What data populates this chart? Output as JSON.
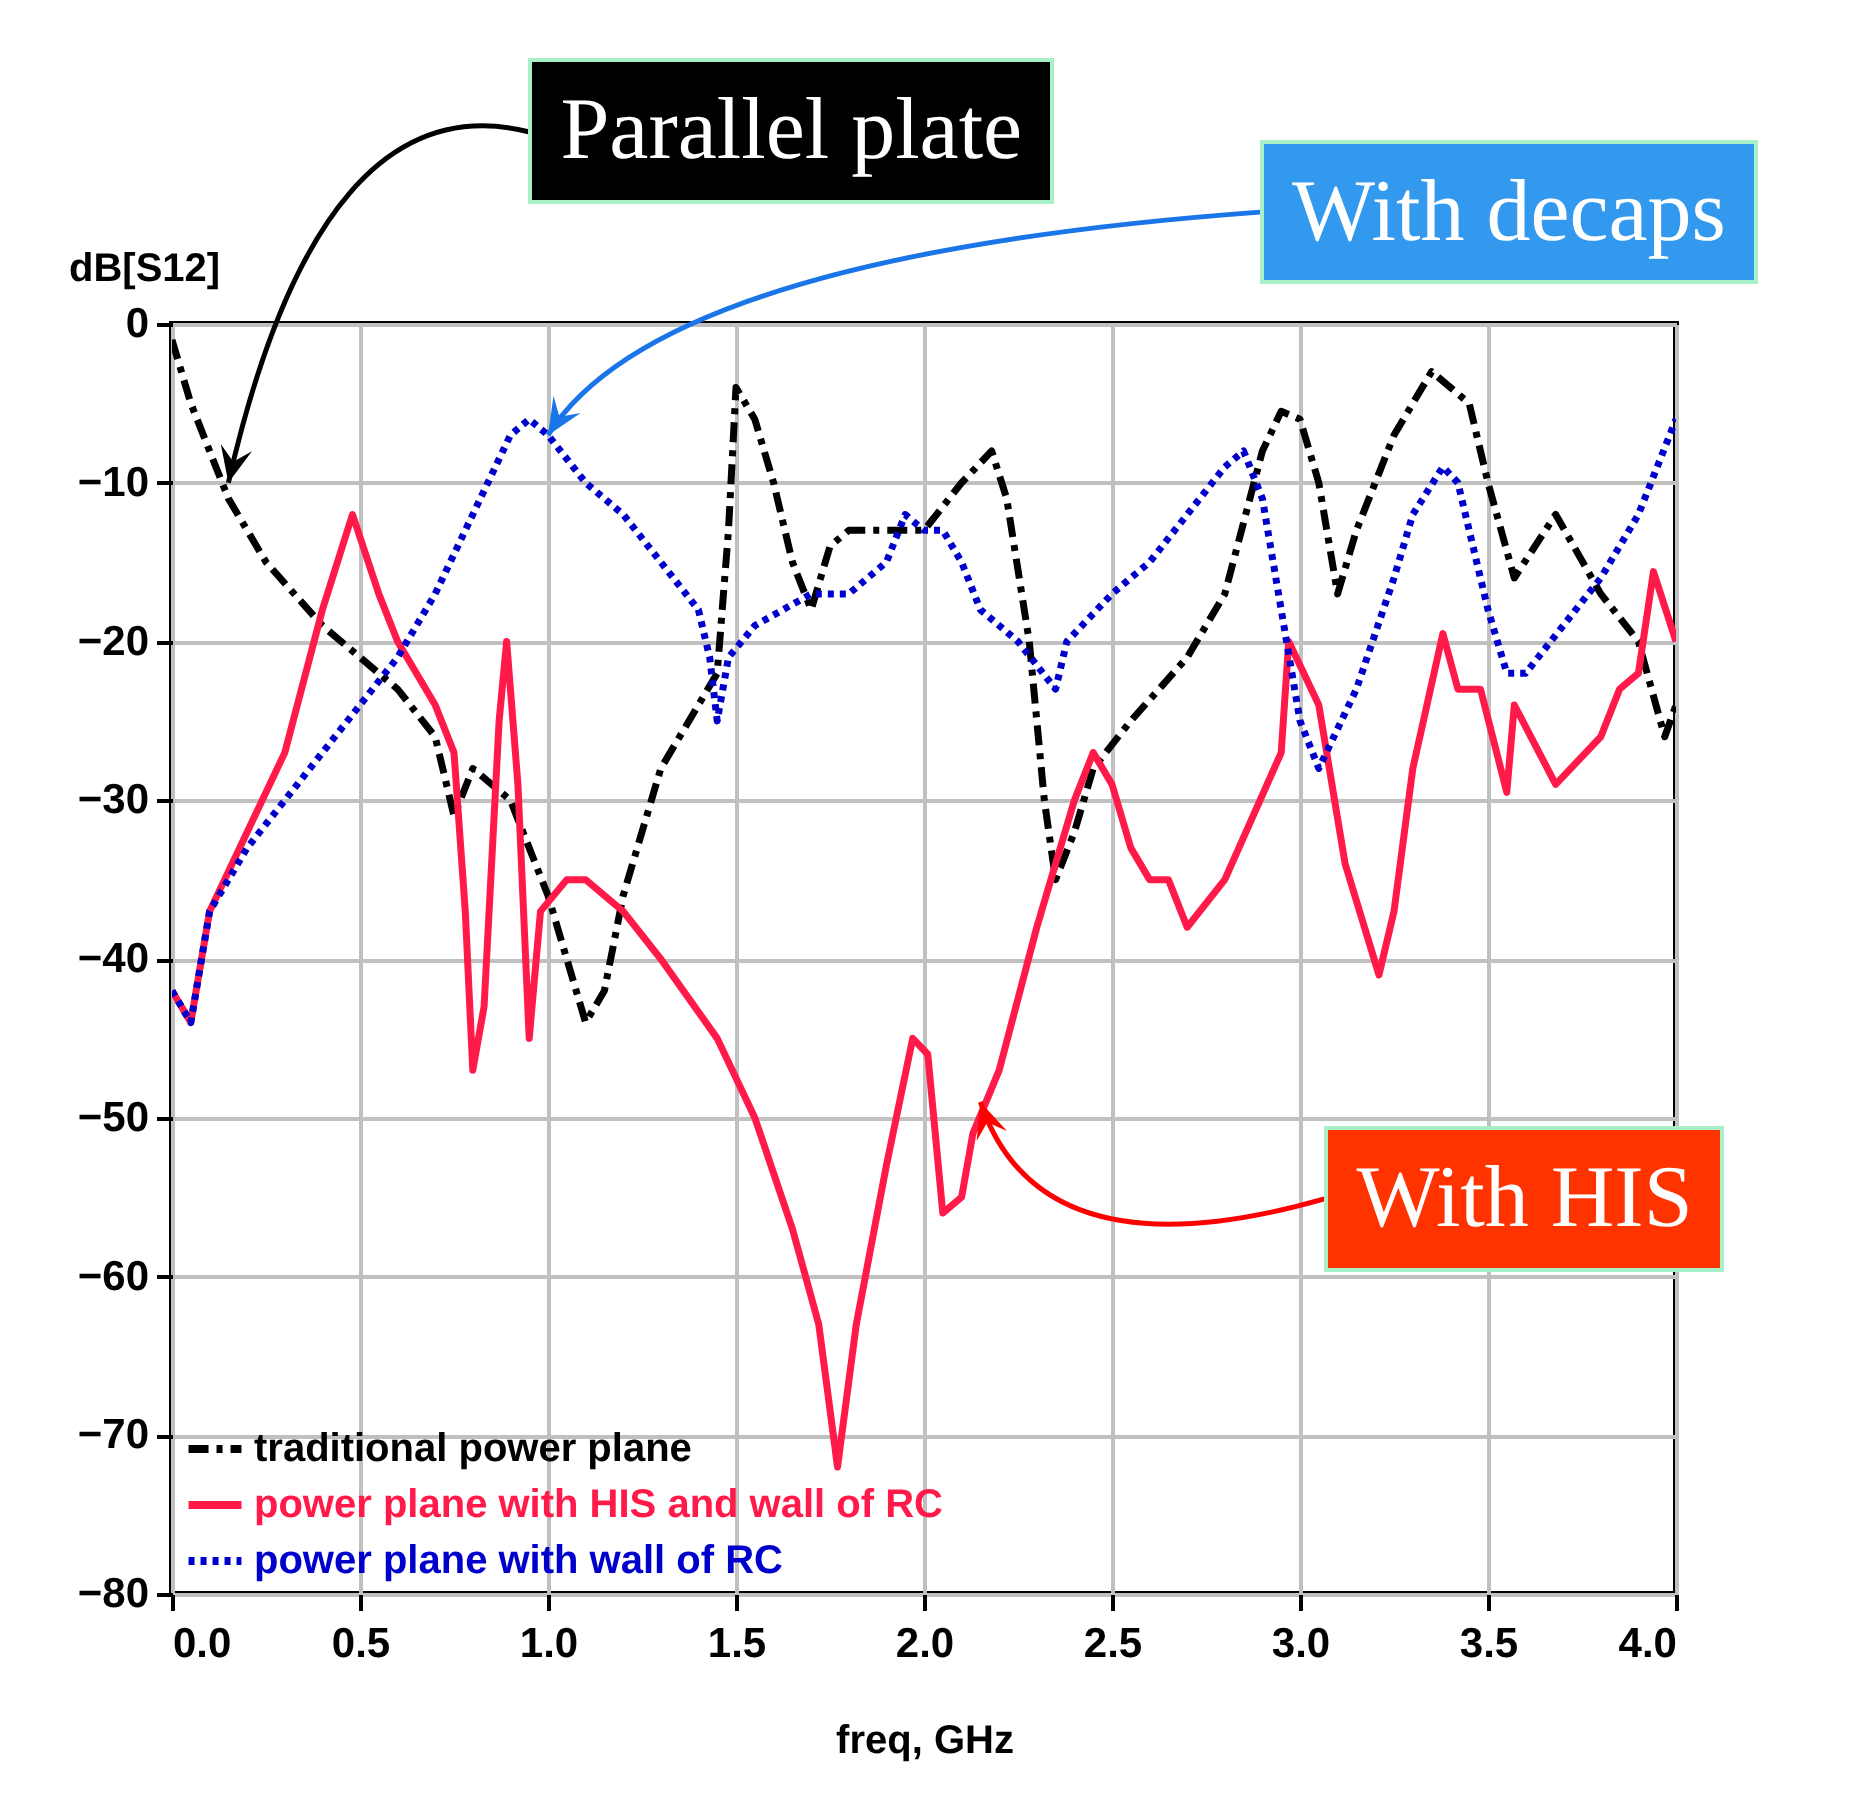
{
  "chart_data": {
    "type": "line",
    "xlabel": "freq, GHz",
    "ylabel": "dB[S12]",
    "xlim": [
      0,
      4
    ],
    "xticks": [
      {
        "value": 0,
        "label": "0.0"
      },
      {
        "value": 0.5,
        "label": "0.5"
      },
      {
        "value": 1,
        "label": "1.0"
      },
      {
        "value": 1.5,
        "label": "1.5"
      },
      {
        "value": 2,
        "label": "2.0"
      },
      {
        "value": 2.5,
        "label": "2.5"
      },
      {
        "value": 3,
        "label": "3.0"
      },
      {
        "value": 3.5,
        "label": "3.5"
      },
      {
        "value": 4,
        "label": "4.0"
      }
    ],
    "ylim": [
      -80,
      0
    ],
    "yticks": [
      -80,
      -70,
      -60,
      -50,
      -40,
      -30,
      -20,
      -10,
      0
    ],
    "grid": true,
    "legend": "bottom left",
    "annotations": [
      {
        "text": "Parallel plate",
        "x": 0.15,
        "y": -10
      },
      {
        "text": "With decaps",
        "x": 1.0,
        "y": -7
      },
      {
        "text": "With HIS",
        "x": 2.15,
        "y": -49
      }
    ],
    "series": [
      {
        "name": "traditional power plane",
        "color": "#000000",
        "line_style": "dashed",
        "x": [
          0,
          0.05,
          0.1,
          0.15,
          0.25,
          0.4,
          0.5,
          0.6,
          0.7,
          0.75,
          0.8,
          0.9,
          1.0,
          1.05,
          1.1,
          1.15,
          1.2,
          1.3,
          1.4,
          1.45,
          1.48,
          1.5,
          1.55,
          1.6,
          1.65,
          1.7,
          1.75,
          1.8,
          1.9,
          2.0,
          2.1,
          2.18,
          2.22,
          2.28,
          2.32,
          2.35,
          2.4,
          2.45,
          2.55,
          2.7,
          2.8,
          2.9,
          2.95,
          3.0,
          3.05,
          3.1,
          3.15,
          3.25,
          3.35,
          3.4,
          3.45,
          3.5,
          3.57,
          3.68,
          3.8,
          3.9,
          3.97,
          4.0
        ],
        "values": [
          -1,
          -5,
          -8,
          -11,
          -15,
          -19,
          -21,
          -23,
          -26,
          -31,
          -28,
          -30,
          -36,
          -40,
          -44,
          -42,
          -36,
          -28,
          -24,
          -22,
          -13,
          -4,
          -6,
          -10,
          -15,
          -18,
          -14,
          -13,
          -13,
          -13,
          -10,
          -8,
          -11,
          -20,
          -30,
          -35,
          -32,
          -28,
          -25,
          -21,
          -17,
          -8,
          -5.5,
          -6,
          -10,
          -17,
          -13,
          -7,
          -3,
          -4,
          -5,
          -10,
          -16,
          -12,
          -17,
          -20,
          -26,
          -24
        ]
      },
      {
        "name": "power plane with  HIS and wall of RC",
        "color": "#ff1a4a",
        "line_style": "solid",
        "x": [
          0,
          0.05,
          0.1,
          0.2,
          0.3,
          0.4,
          0.48,
          0.55,
          0.6,
          0.65,
          0.7,
          0.75,
          0.78,
          0.8,
          0.83,
          0.87,
          0.89,
          0.92,
          0.95,
          0.98,
          1.05,
          1.1,
          1.2,
          1.3,
          1.45,
          1.55,
          1.65,
          1.72,
          1.77,
          1.82,
          1.9,
          1.97,
          2.01,
          2.05,
          2.1,
          2.13,
          2.2,
          2.3,
          2.4,
          2.45,
          2.5,
          2.55,
          2.6,
          2.65,
          2.7,
          2.8,
          2.95,
          2.97,
          3.05,
          3.12,
          3.21,
          3.25,
          3.3,
          3.38,
          3.42,
          3.48,
          3.55,
          3.57,
          3.68,
          3.8,
          3.85,
          3.9,
          3.94,
          4.0
        ],
        "values": [
          -42,
          -44,
          -37,
          -32,
          -27,
          -18,
          -12,
          -17,
          -20,
          -22,
          -24,
          -27,
          -37,
          -47,
          -43,
          -25,
          -20,
          -29,
          -45,
          -37,
          -35,
          -35,
          -37,
          -40,
          -45,
          -50,
          -57,
          -63,
          -72,
          -63,
          -53,
          -45,
          -46,
          -56,
          -55,
          -51,
          -47,
          -38,
          -30,
          -27,
          -29,
          -33,
          -35,
          -35,
          -38,
          -35,
          -27,
          -20,
          -24,
          -34,
          -41,
          -37,
          -28,
          -19.5,
          -23,
          -23,
          -29.5,
          -24,
          -29,
          -26,
          -23,
          -22,
          -15.6,
          -20
        ]
      },
      {
        "name": "power plane with wall of RC",
        "color": "#0000cc",
        "line_style": "dotted",
        "x": [
          0,
          0.05,
          0.1,
          0.2,
          0.3,
          0.4,
          0.5,
          0.6,
          0.7,
          0.8,
          0.9,
          0.95,
          1.0,
          1.1,
          1.2,
          1.3,
          1.4,
          1.43,
          1.45,
          1.48,
          1.55,
          1.7,
          1.8,
          1.9,
          1.95,
          2.0,
          2.05,
          2.1,
          2.15,
          2.25,
          2.35,
          2.38,
          2.5,
          2.6,
          2.7,
          2.8,
          2.85,
          2.9,
          2.95,
          3.0,
          3.05,
          3.15,
          3.25,
          3.3,
          3.38,
          3.42,
          3.5,
          3.55,
          3.6,
          3.7,
          3.8,
          3.9,
          4.0
        ],
        "values": [
          -42,
          -44,
          -37,
          -33,
          -30,
          -27,
          -24,
          -21,
          -17,
          -12,
          -7,
          -6,
          -7,
          -10,
          -12,
          -15,
          -18,
          -21,
          -25,
          -21,
          -19,
          -17,
          -17,
          -15,
          -12,
          -13,
          -13,
          -15,
          -18,
          -20,
          -23,
          -20,
          -17,
          -15,
          -12,
          -9,
          -8,
          -11,
          -18,
          -25,
          -28,
          -23,
          -16,
          -12,
          -9,
          -10,
          -18,
          -22,
          -22,
          -19,
          -16,
          -12,
          -6
        ]
      }
    ]
  }
}
